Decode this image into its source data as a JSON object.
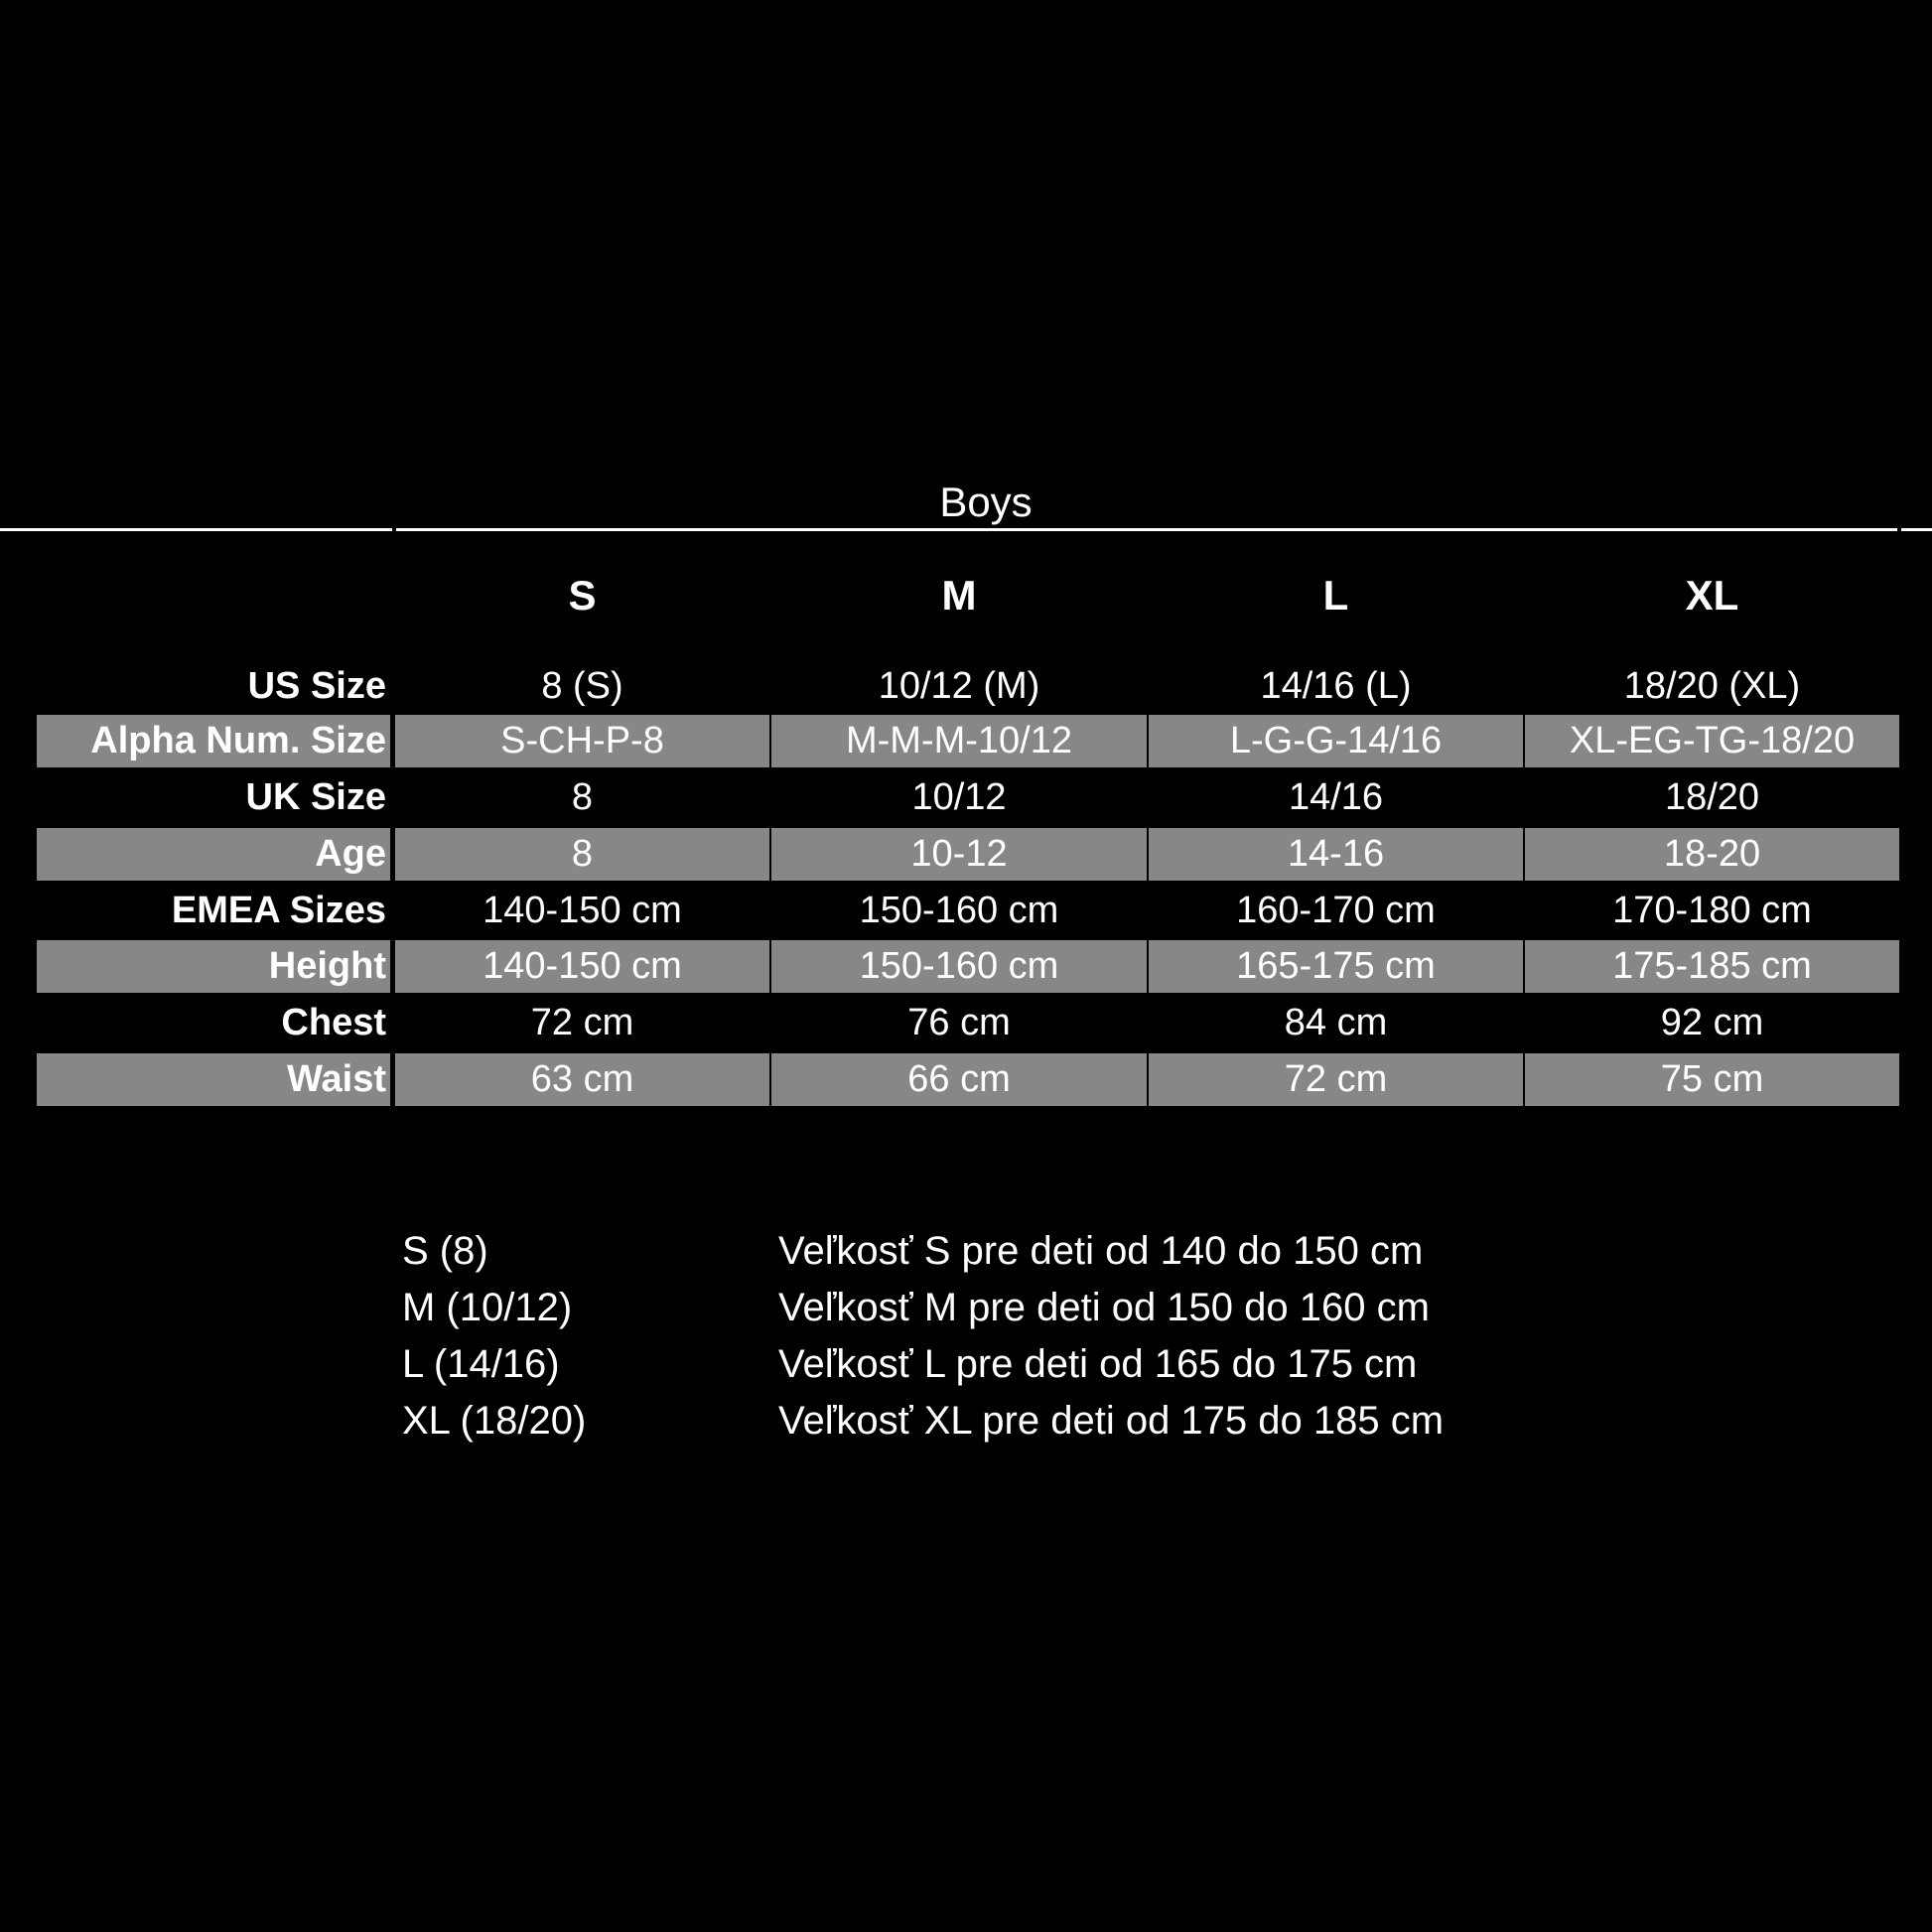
{
  "title": "Boys",
  "columns": [
    "S",
    "M",
    "L",
    "XL"
  ],
  "rows": [
    {
      "label": "US Size",
      "values": [
        "8 (S)",
        "10/12 (M)",
        "14/16 (L)",
        "18/20 (XL)"
      ],
      "shaded": false
    },
    {
      "label": "Alpha Num. Size",
      "values": [
        "S-CH-P-8",
        "M-M-M-10/12",
        "L-G-G-14/16",
        "XL-EG-TG-18/20"
      ],
      "shaded": true
    },
    {
      "label": "UK Size",
      "values": [
        "8",
        "10/12",
        "14/16",
        "18/20"
      ],
      "shaded": false
    },
    {
      "label": "Age",
      "values": [
        "8",
        "10-12",
        "14-16",
        "18-20"
      ],
      "shaded": true
    },
    {
      "label": "EMEA Sizes",
      "values": [
        "140-150 cm",
        "150-160 cm",
        "160-170 cm",
        "170-180 cm"
      ],
      "shaded": false
    },
    {
      "label": "Height",
      "values": [
        "140-150 cm",
        "150-160 cm",
        "165-175 cm",
        "175-185 cm"
      ],
      "shaded": true
    },
    {
      "label": "Chest",
      "values": [
        "72 cm",
        "76 cm",
        "84 cm",
        "92 cm"
      ],
      "shaded": false
    },
    {
      "label": "Waist",
      "values": [
        "63 cm",
        "66 cm",
        "72 cm",
        "75 cm"
      ],
      "shaded": true
    }
  ],
  "notes": [
    {
      "size": "S (8)",
      "text": "Veľkosť S pre deti od 140 do 150 cm"
    },
    {
      "size": "M (10/12)",
      "text": "Veľkosť M pre deti od 150 do 160 cm"
    },
    {
      "size": "L (14/16)",
      "text": "Veľkosť L pre deti od 165 do 175 cm"
    },
    {
      "size": "XL (18/20)",
      "text": "Veľkosť XL pre deti od 175 do 185 cm"
    }
  ],
  "colors": {
    "background": "#000000",
    "shaded_row": "#878787",
    "text": "#ffffff"
  }
}
